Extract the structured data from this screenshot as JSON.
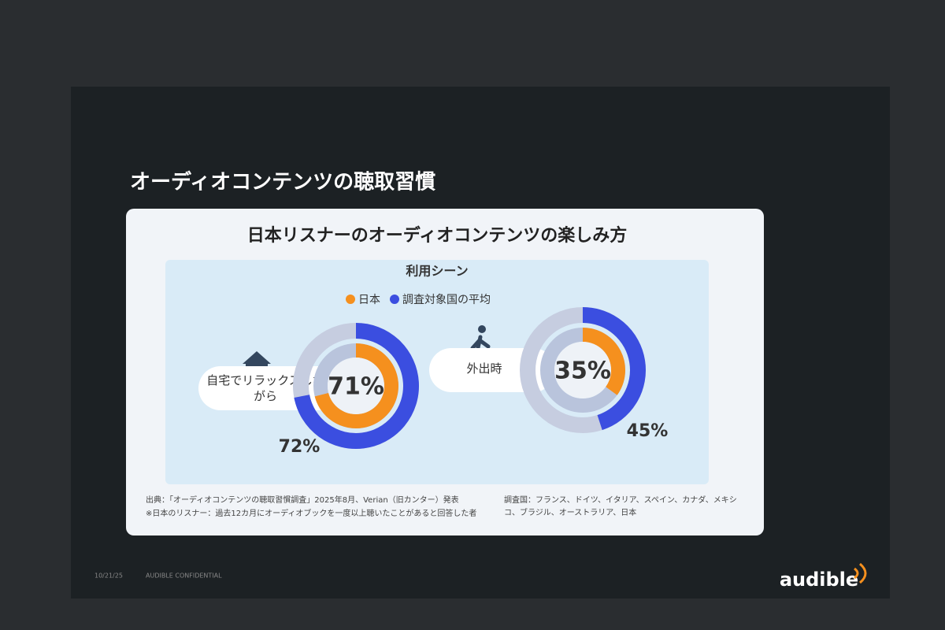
{
  "slide": {
    "heading": "オーディオコンテンツの聴取習慣",
    "date": "10/21/25",
    "confidential": "AUDIBLE CONFIDENTIAL",
    "logo": "audible"
  },
  "chart_data": {
    "type": "donut",
    "title": "日本リスナーのオーディオコンテンツの楽しみ方",
    "subtitle": "利用シーン",
    "categories": [
      "自宅でリラックスしながら",
      "外出時"
    ],
    "series": [
      {
        "name": "日本",
        "color": "#f5901e",
        "values": [
          71,
          35
        ],
        "value_labels": [
          "71%",
          "35%"
        ]
      },
      {
        "name": "調査対象国の平均",
        "color": "#3b4ee0",
        "values": [
          72,
          45
        ],
        "value_labels": [
          "72%",
          "45%"
        ]
      }
    ],
    "ylim": [
      0,
      100
    ],
    "notes": [
      "出典：「オーディオコンテンツの聴取習慣調査」2025年8月、Verian（旧カンター）発表",
      "※日本のリスナー：過去12カ月にオーディオブックを一度以上聴いたことがあると回答した者"
    ],
    "survey_countries": "調査国：フランス、ドイツ、イタリア、スペイン、カナダ、メキシコ、ブラジル、オーストラリア、日本"
  }
}
